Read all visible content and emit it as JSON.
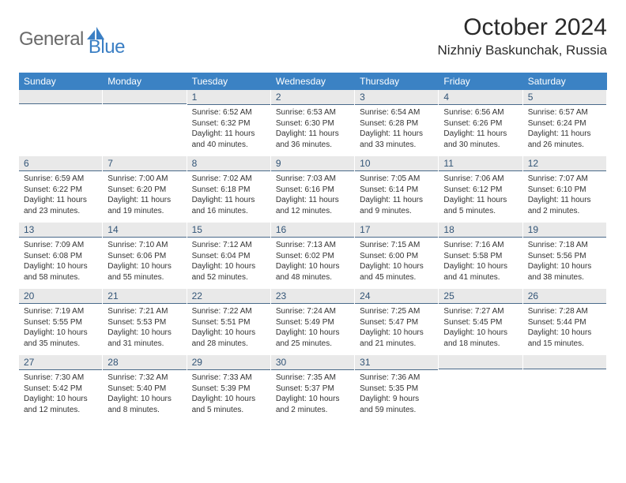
{
  "logo": {
    "word1": "General",
    "word2": "Blue"
  },
  "header": {
    "title": "October 2024",
    "location": "Nizhniy Baskunchak, Russia"
  },
  "colors": {
    "header_bar": "#3b82c4",
    "daynum_bg": "#e9e9e9",
    "daynum_border": "#4a6a8a",
    "text": "#333333",
    "logo_gray": "#6a6a6a",
    "logo_blue": "#3b7fc4"
  },
  "weekdays": [
    "Sunday",
    "Monday",
    "Tuesday",
    "Wednesday",
    "Thursday",
    "Friday",
    "Saturday"
  ],
  "weeks": [
    [
      null,
      null,
      {
        "n": "1",
        "sr": "Sunrise: 6:52 AM",
        "ss": "Sunset: 6:32 PM",
        "dl": "Daylight: 11 hours and 40 minutes."
      },
      {
        "n": "2",
        "sr": "Sunrise: 6:53 AM",
        "ss": "Sunset: 6:30 PM",
        "dl": "Daylight: 11 hours and 36 minutes."
      },
      {
        "n": "3",
        "sr": "Sunrise: 6:54 AM",
        "ss": "Sunset: 6:28 PM",
        "dl": "Daylight: 11 hours and 33 minutes."
      },
      {
        "n": "4",
        "sr": "Sunrise: 6:56 AM",
        "ss": "Sunset: 6:26 PM",
        "dl": "Daylight: 11 hours and 30 minutes."
      },
      {
        "n": "5",
        "sr": "Sunrise: 6:57 AM",
        "ss": "Sunset: 6:24 PM",
        "dl": "Daylight: 11 hours and 26 minutes."
      }
    ],
    [
      {
        "n": "6",
        "sr": "Sunrise: 6:59 AM",
        "ss": "Sunset: 6:22 PM",
        "dl": "Daylight: 11 hours and 23 minutes."
      },
      {
        "n": "7",
        "sr": "Sunrise: 7:00 AM",
        "ss": "Sunset: 6:20 PM",
        "dl": "Daylight: 11 hours and 19 minutes."
      },
      {
        "n": "8",
        "sr": "Sunrise: 7:02 AM",
        "ss": "Sunset: 6:18 PM",
        "dl": "Daylight: 11 hours and 16 minutes."
      },
      {
        "n": "9",
        "sr": "Sunrise: 7:03 AM",
        "ss": "Sunset: 6:16 PM",
        "dl": "Daylight: 11 hours and 12 minutes."
      },
      {
        "n": "10",
        "sr": "Sunrise: 7:05 AM",
        "ss": "Sunset: 6:14 PM",
        "dl": "Daylight: 11 hours and 9 minutes."
      },
      {
        "n": "11",
        "sr": "Sunrise: 7:06 AM",
        "ss": "Sunset: 6:12 PM",
        "dl": "Daylight: 11 hours and 5 minutes."
      },
      {
        "n": "12",
        "sr": "Sunrise: 7:07 AM",
        "ss": "Sunset: 6:10 PM",
        "dl": "Daylight: 11 hours and 2 minutes."
      }
    ],
    [
      {
        "n": "13",
        "sr": "Sunrise: 7:09 AM",
        "ss": "Sunset: 6:08 PM",
        "dl": "Daylight: 10 hours and 58 minutes."
      },
      {
        "n": "14",
        "sr": "Sunrise: 7:10 AM",
        "ss": "Sunset: 6:06 PM",
        "dl": "Daylight: 10 hours and 55 minutes."
      },
      {
        "n": "15",
        "sr": "Sunrise: 7:12 AM",
        "ss": "Sunset: 6:04 PM",
        "dl": "Daylight: 10 hours and 52 minutes."
      },
      {
        "n": "16",
        "sr": "Sunrise: 7:13 AM",
        "ss": "Sunset: 6:02 PM",
        "dl": "Daylight: 10 hours and 48 minutes."
      },
      {
        "n": "17",
        "sr": "Sunrise: 7:15 AM",
        "ss": "Sunset: 6:00 PM",
        "dl": "Daylight: 10 hours and 45 minutes."
      },
      {
        "n": "18",
        "sr": "Sunrise: 7:16 AM",
        "ss": "Sunset: 5:58 PM",
        "dl": "Daylight: 10 hours and 41 minutes."
      },
      {
        "n": "19",
        "sr": "Sunrise: 7:18 AM",
        "ss": "Sunset: 5:56 PM",
        "dl": "Daylight: 10 hours and 38 minutes."
      }
    ],
    [
      {
        "n": "20",
        "sr": "Sunrise: 7:19 AM",
        "ss": "Sunset: 5:55 PM",
        "dl": "Daylight: 10 hours and 35 minutes."
      },
      {
        "n": "21",
        "sr": "Sunrise: 7:21 AM",
        "ss": "Sunset: 5:53 PM",
        "dl": "Daylight: 10 hours and 31 minutes."
      },
      {
        "n": "22",
        "sr": "Sunrise: 7:22 AM",
        "ss": "Sunset: 5:51 PM",
        "dl": "Daylight: 10 hours and 28 minutes."
      },
      {
        "n": "23",
        "sr": "Sunrise: 7:24 AM",
        "ss": "Sunset: 5:49 PM",
        "dl": "Daylight: 10 hours and 25 minutes."
      },
      {
        "n": "24",
        "sr": "Sunrise: 7:25 AM",
        "ss": "Sunset: 5:47 PM",
        "dl": "Daylight: 10 hours and 21 minutes."
      },
      {
        "n": "25",
        "sr": "Sunrise: 7:27 AM",
        "ss": "Sunset: 5:45 PM",
        "dl": "Daylight: 10 hours and 18 minutes."
      },
      {
        "n": "26",
        "sr": "Sunrise: 7:28 AM",
        "ss": "Sunset: 5:44 PM",
        "dl": "Daylight: 10 hours and 15 minutes."
      }
    ],
    [
      {
        "n": "27",
        "sr": "Sunrise: 7:30 AM",
        "ss": "Sunset: 5:42 PM",
        "dl": "Daylight: 10 hours and 12 minutes."
      },
      {
        "n": "28",
        "sr": "Sunrise: 7:32 AM",
        "ss": "Sunset: 5:40 PM",
        "dl": "Daylight: 10 hours and 8 minutes."
      },
      {
        "n": "29",
        "sr": "Sunrise: 7:33 AM",
        "ss": "Sunset: 5:39 PM",
        "dl": "Daylight: 10 hours and 5 minutes."
      },
      {
        "n": "30",
        "sr": "Sunrise: 7:35 AM",
        "ss": "Sunset: 5:37 PM",
        "dl": "Daylight: 10 hours and 2 minutes."
      },
      {
        "n": "31",
        "sr": "Sunrise: 7:36 AM",
        "ss": "Sunset: 5:35 PM",
        "dl": "Daylight: 9 hours and 59 minutes."
      },
      null,
      null
    ]
  ]
}
